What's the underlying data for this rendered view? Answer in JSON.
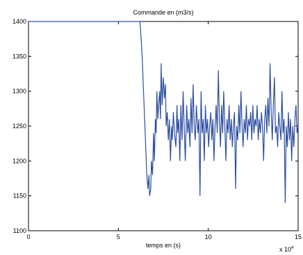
{
  "chart_data": {
    "type": "line",
    "title": "Commande en (m3/s)",
    "xlabel": "temps en (s)",
    "ylabel": "",
    "x_exponent_label": "x 10",
    "x_exponent_power": "4",
    "xlim": [
      0,
      15
    ],
    "ylim": [
      1100,
      1400
    ],
    "x_ticks": [
      0,
      5,
      10,
      15
    ],
    "x_tick_labels": [
      "0",
      "5",
      "10",
      "15"
    ],
    "y_ticks": [
      1100,
      1150,
      1200,
      1250,
      1300,
      1350,
      1400
    ],
    "y_tick_labels": [
      "1100",
      "1150",
      "1200",
      "1250",
      "1300",
      "1350",
      "1400"
    ],
    "grid": false,
    "line_color": "#2c4da0",
    "series": [
      {
        "x": [
          0,
          6.2,
          6.28,
          6.34,
          6.4,
          6.46,
          6.52,
          6.58,
          6.64,
          6.7,
          6.74,
          6.8,
          6.84,
          6.9,
          6.96,
          7.0,
          7.06,
          7.1,
          7.14,
          7.2,
          7.24,
          7.3,
          7.34,
          7.38,
          7.44,
          7.5,
          7.56,
          7.62,
          7.66,
          7.72,
          7.78,
          7.84,
          7.9,
          7.96,
          8.0,
          8.06,
          8.12,
          8.2,
          8.26,
          8.3,
          8.36,
          8.42,
          8.48,
          8.54,
          8.6,
          8.66,
          8.72,
          8.8,
          8.86,
          8.92,
          8.98,
          9.04,
          9.1,
          9.16,
          9.22,
          9.28,
          9.34,
          9.42,
          9.48,
          9.54,
          9.6,
          9.66,
          9.72,
          9.78,
          9.84,
          9.9,
          9.96,
          10.02,
          10.08,
          10.14,
          10.2,
          10.26,
          10.32,
          10.38,
          10.44,
          10.5,
          10.56,
          10.62,
          10.68,
          10.74,
          10.8,
          10.86,
          10.92,
          10.98,
          11.04,
          11.1,
          11.16,
          11.22,
          11.28,
          11.34,
          11.4,
          11.46,
          11.52,
          11.58,
          11.64,
          11.7,
          11.76,
          11.82,
          11.88,
          11.94,
          12.0,
          12.06,
          12.12,
          12.18,
          12.24,
          12.3,
          12.36,
          12.42,
          12.48,
          12.54,
          12.6,
          12.66,
          12.72,
          12.78,
          12.84,
          12.9,
          12.96,
          13.02,
          13.08,
          13.14,
          13.2,
          13.26,
          13.32,
          13.38,
          13.44,
          13.5,
          13.56,
          13.62,
          13.68,
          13.74,
          13.8,
          13.86,
          13.92,
          13.98,
          14.04,
          14.1,
          14.16,
          14.22,
          14.28,
          14.34,
          14.4,
          14.46,
          14.52,
          14.58,
          14.64,
          14.7,
          14.76,
          14.82,
          14.88,
          14.94,
          15.0
        ],
        "y": [
          1400,
          1400,
          1370,
          1340,
          1300,
          1260,
          1220,
          1180,
          1160,
          1180,
          1150,
          1160,
          1200,
          1180,
          1240,
          1200,
          1260,
          1240,
          1300,
          1260,
          1280,
          1300,
          1260,
          1340,
          1280,
          1320,
          1290,
          1310,
          1250,
          1270,
          1230,
          1260,
          1200,
          1250,
          1230,
          1270,
          1240,
          1220,
          1280,
          1240,
          1260,
          1200,
          1280,
          1230,
          1300,
          1250,
          1200,
          1280,
          1240,
          1260,
          1220,
          1290,
          1240,
          1310,
          1250,
          1230,
          1280,
          1240,
          1260,
          1150,
          1300,
          1240,
          1260,
          1200,
          1280,
          1240,
          1260,
          1220,
          1250,
          1270,
          1230,
          1260,
          1200,
          1250,
          1280,
          1240,
          1330,
          1260,
          1220,
          1280,
          1240,
          1300,
          1250,
          1200,
          1260,
          1240,
          1280,
          1230,
          1260,
          1220,
          1250,
          1270,
          1160,
          1250,
          1230,
          1280,
          1240,
          1300,
          1250,
          1220,
          1260,
          1240,
          1280,
          1230,
          1260,
          1250,
          1270,
          1230,
          1280,
          1240,
          1260,
          1250,
          1280,
          1230,
          1260,
          1240,
          1270,
          1250,
          1200,
          1260,
          1280,
          1240,
          1290,
          1250,
          1340,
          1270,
          1230,
          1280,
          1320,
          1240,
          1250,
          1220,
          1270,
          1250,
          1230,
          1300,
          1240,
          1260,
          1140,
          1250,
          1220,
          1270,
          1230,
          1260,
          1200,
          1250,
          1220,
          1260,
          1280,
          1240,
          1250
        ]
      }
    ]
  }
}
